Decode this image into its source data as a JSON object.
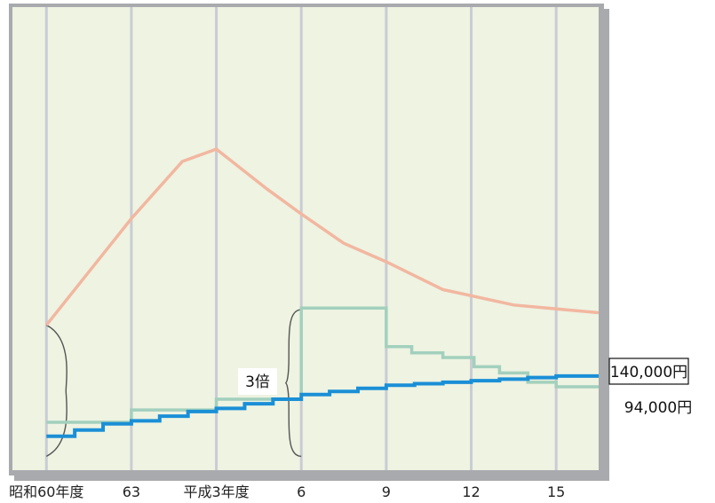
{
  "chart_data": {
    "type": "line",
    "title": "",
    "xlabel": "",
    "ylabel": "",
    "x_ticks": [
      {
        "pos": 0,
        "label": "昭和60年度"
      },
      {
        "pos": 3,
        "label": "63"
      },
      {
        "pos": 6,
        "label": "平成3年度"
      },
      {
        "pos": 9,
        "label": "6"
      },
      {
        "pos": 12,
        "label": "9"
      },
      {
        "pos": 15,
        "label": "12"
      },
      {
        "pos": 18,
        "label": "15"
      }
    ],
    "xlim": [
      -1.2,
      19.5
    ],
    "ylim": [
      0,
      300
    ],
    "grid": {
      "vertical": true,
      "horizontal": false
    },
    "colors": {
      "background": "#eef3e2",
      "frame": "#a8aaad",
      "grid": "#c9ccd4",
      "peak_line": "#f2b7a0",
      "green_step": "#a2d0bd",
      "blue_step": "#1a8fd6",
      "brace": "#555555"
    },
    "series": [
      {
        "key": "peak",
        "style": "line",
        "color": "#f2b7a0",
        "x": [
          0,
          3,
          4.8,
          6,
          7.8,
          9,
          10.5,
          12,
          14,
          16.5,
          19.5
        ],
        "y": [
          94,
          163,
          200,
          208,
          182,
          166,
          147,
          135,
          117,
          107,
          102
        ]
      },
      {
        "key": "green",
        "style": "step",
        "color": "#a2d0bd",
        "x": [
          0,
          2,
          3,
          6,
          9,
          12,
          12.9,
          14,
          15.1,
          16,
          17,
          18,
          19.5
        ],
        "y": [
          31,
          31,
          39,
          46,
          105,
          80,
          76,
          73,
          67,
          63,
          57,
          54,
          54
        ]
      },
      {
        "key": "blue",
        "style": "step",
        "color": "#1a8fd6",
        "x": [
          0,
          1,
          2,
          3,
          4,
          5,
          6,
          7,
          8,
          9,
          10,
          11,
          12,
          13,
          14,
          15,
          16,
          17,
          18,
          19.5
        ],
        "y": [
          22,
          26,
          30,
          32,
          35,
          38,
          40,
          43,
          46,
          49,
          51,
          53,
          55,
          56,
          57,
          58,
          59,
          60,
          61,
          61
        ]
      }
    ],
    "annotations": [
      {
        "key": "brace_left",
        "type": "brace",
        "x": 0,
        "y_from": 9,
        "y_to": 94
      },
      {
        "key": "brace_mid",
        "type": "brace",
        "x": 9,
        "y_from": 9,
        "y_to": 104,
        "label": "3倍"
      },
      {
        "key": "label_140000",
        "type": "boxed_label",
        "text": "140,000円",
        "attach": "green"
      },
      {
        "key": "label_94000",
        "type": "label",
        "text": "94,000円",
        "attach": "blue"
      }
    ]
  }
}
